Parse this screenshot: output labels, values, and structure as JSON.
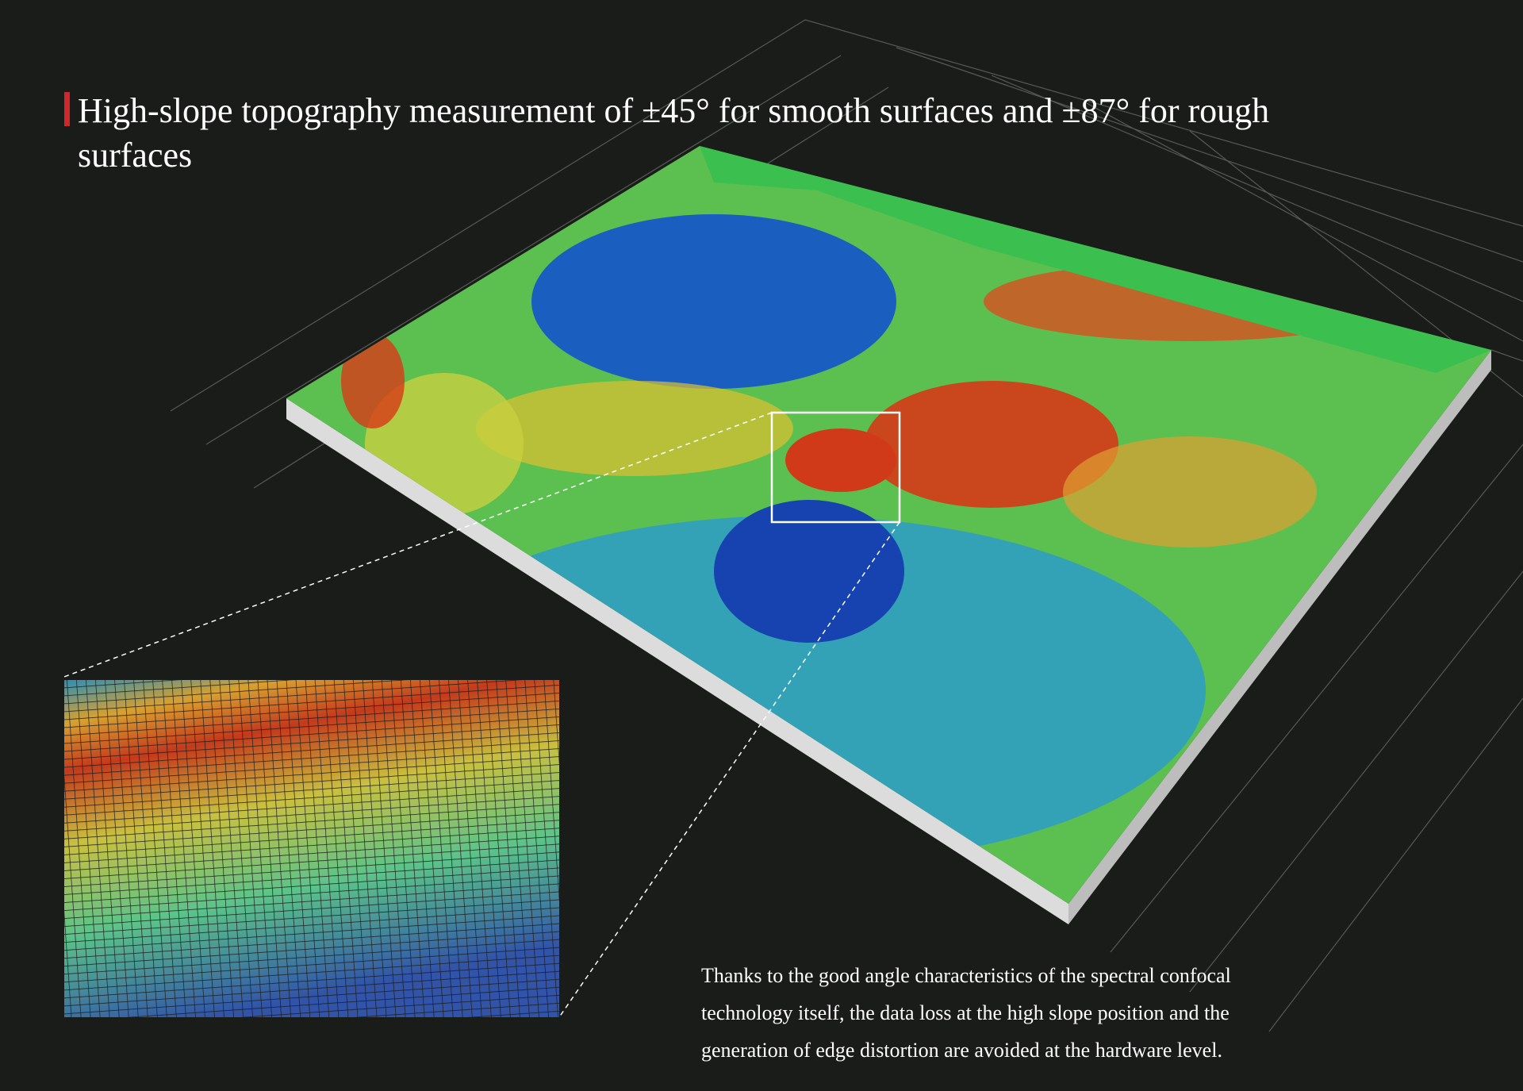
{
  "title": "High-slope topography measurement of ±45° for smooth surfaces and ±87° for rough surfaces",
  "description": [
    "Thanks to the good angle characteristics of the spectral confocal",
    "technology itself, the data loss at the high slope position and the",
    "generation of edge distortion are avoided at the hardware level."
  ]
}
